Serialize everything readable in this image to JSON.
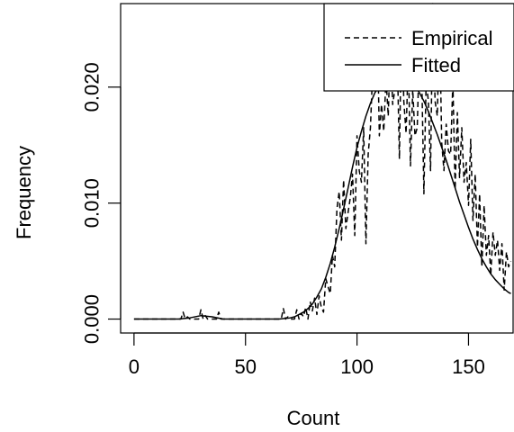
{
  "chart_data": {
    "type": "line",
    "title": "",
    "xlabel": "Count",
    "ylabel": "Frequency",
    "xlim": [
      -6,
      170
    ],
    "ylim": [
      -0.0012,
      0.0272
    ],
    "x_ticks": [
      0,
      50,
      100,
      150
    ],
    "x_tick_labels": [
      "0",
      "50",
      "100",
      "150"
    ],
    "y_ticks": [
      0.0,
      0.01,
      0.02
    ],
    "y_tick_labels": [
      "0.000",
      "0.010",
      "0.020"
    ],
    "legend": {
      "position": "top-right"
    },
    "series": [
      {
        "name": "Empirical",
        "style": "dashed",
        "color": "#000000",
        "x": [
          0,
          21,
          22,
          23,
          24,
          25,
          29,
          30,
          31,
          32,
          33,
          37,
          38,
          39,
          40,
          66,
          67,
          68,
          69,
          70,
          72,
          73,
          74,
          75,
          76,
          77,
          78,
          79,
          80,
          81,
          82,
          83,
          84,
          85,
          86,
          87,
          88,
          89,
          90,
          91,
          92,
          93,
          94,
          95,
          96,
          97,
          98,
          99,
          100,
          101,
          102,
          103,
          104,
          105,
          106,
          107,
          108,
          109,
          110,
          111,
          112,
          113,
          114,
          115,
          116,
          117,
          118,
          119,
          120,
          121,
          122,
          123,
          124,
          125,
          126,
          127,
          128,
          129,
          130,
          131,
          132,
          133,
          134,
          135,
          136,
          137,
          138,
          139,
          140,
          141,
          142,
          143,
          144,
          145,
          146,
          147,
          148,
          149,
          150,
          151,
          152,
          153,
          154,
          155,
          156,
          157,
          158,
          159,
          160,
          161,
          162,
          163,
          164,
          165,
          166,
          167,
          168,
          169
        ],
        "y": [
          0,
          0,
          0.0006,
          0,
          0.0002,
          0,
          0,
          0.0008,
          0,
          0.0003,
          0,
          0,
          0.0006,
          0,
          0,
          0,
          0.0009,
          0,
          0.0002,
          0,
          0,
          0.0008,
          0,
          0.0005,
          0.0002,
          0.001,
          0,
          0.0015,
          0.0007,
          0.0018,
          0.0004,
          0.002,
          0.001,
          0.0006,
          0.0035,
          0.0028,
          0.0022,
          0.0055,
          0.0045,
          0.0095,
          0.011,
          0.0068,
          0.012,
          0.0078,
          0.0092,
          0.0105,
          0.0125,
          0.0072,
          0.0158,
          0.0128,
          0.0118,
          0.0165,
          0.0065,
          0.0142,
          0.0165,
          0.0212,
          0.0225,
          0.0262,
          0.0158,
          0.0185,
          0.0162,
          0.0208,
          0.0175,
          0.024,
          0.0185,
          0.0198,
          0.0232,
          0.0138,
          0.0262,
          0.0188,
          0.016,
          0.0225,
          0.0132,
          0.0198,
          0.0158,
          0.0165,
          0.0235,
          0.0215,
          0.0108,
          0.0205,
          0.0188,
          0.0128,
          0.0272,
          0.0188,
          0.0175,
          0.0258,
          0.0152,
          0.0128,
          0.0168,
          0.0145,
          0.0142,
          0.0205,
          0.0112,
          0.0178,
          0.0122,
          0.0165,
          0.0118,
          0.0135,
          0.0098,
          0.0155,
          0.0085,
          0.0125,
          0.0062,
          0.0108,
          0.0045,
          0.0098,
          0.0055,
          0.0072,
          0.0038,
          0.0075,
          0.0055,
          0.0068,
          0.0042,
          0.0065,
          0.0025,
          0.0058,
          0.0045,
          0.005
        ]
      },
      {
        "name": "Fitted",
        "style": "solid",
        "color": "#000000",
        "x": [
          0,
          5,
          10,
          15,
          20,
          25,
          30,
          35,
          40,
          45,
          50,
          55,
          60,
          65,
          70,
          72,
          74,
          76,
          78,
          80,
          82,
          84,
          86,
          88,
          90,
          92,
          94,
          96,
          98,
          100,
          102,
          104,
          106,
          108,
          110,
          112,
          114,
          116,
          118,
          120,
          122,
          124,
          126,
          128,
          130,
          132,
          134,
          136,
          138,
          140,
          142,
          144,
          146,
          148,
          150,
          152,
          154,
          156,
          158,
          160,
          162,
          164,
          166,
          168,
          169
        ],
        "y": [
          0,
          0,
          0,
          0,
          0,
          0.0001,
          0.0003,
          0.0002,
          0,
          0,
          0,
          0,
          0,
          0,
          0.0001,
          0.0002,
          0.0004,
          0.0006,
          0.0009,
          0.0013,
          0.0019,
          0.0026,
          0.0036,
          0.0048,
          0.0062,
          0.0078,
          0.0095,
          0.0113,
          0.0131,
          0.0148,
          0.0162,
          0.0175,
          0.0186,
          0.0195,
          0.0201,
          0.0205,
          0.0207,
          0.0207,
          0.0206,
          0.0207,
          0.0207,
          0.0205,
          0.0201,
          0.0195,
          0.0188,
          0.0179,
          0.0169,
          0.0159,
          0.0148,
          0.0137,
          0.0125,
          0.0113,
          0.0101,
          0.009,
          0.0079,
          0.0069,
          0.006,
          0.0052,
          0.0045,
          0.0039,
          0.0034,
          0.003,
          0.0026,
          0.0023,
          0.0022
        ]
      }
    ]
  }
}
